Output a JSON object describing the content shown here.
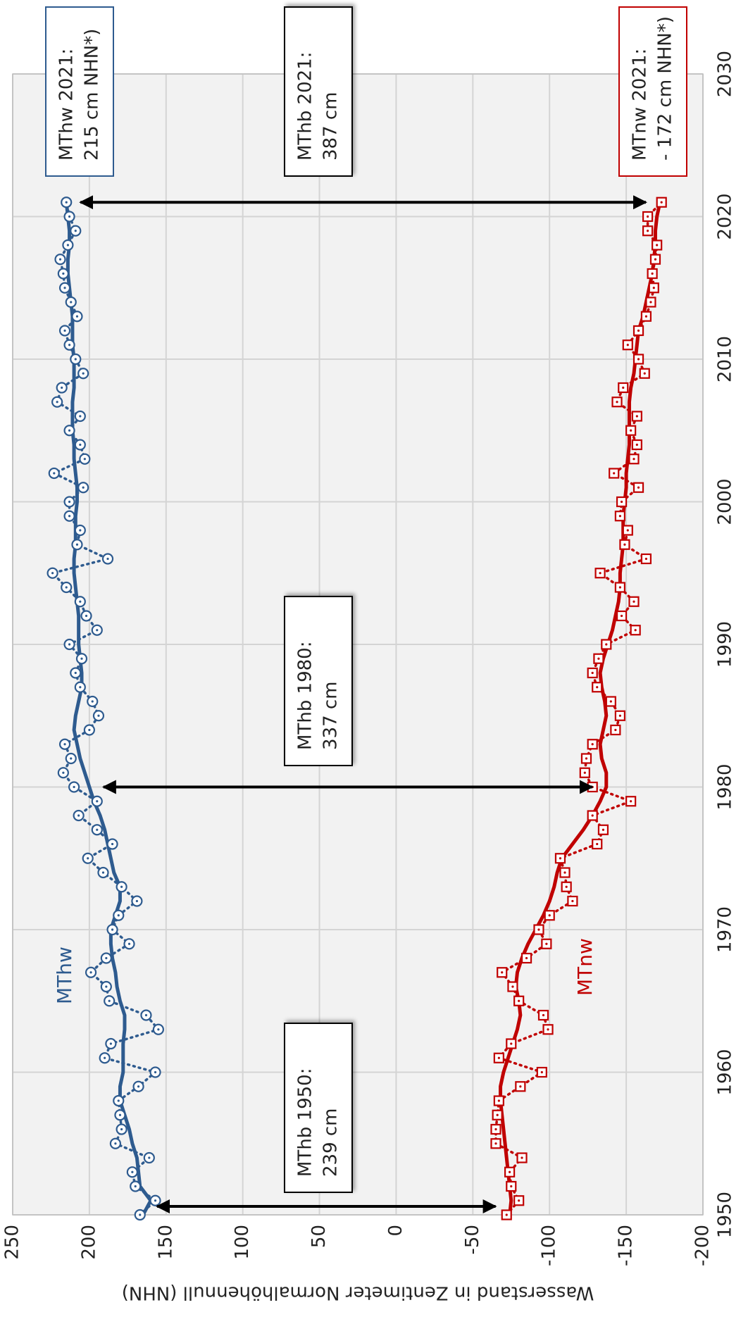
{
  "chart_data": {
    "type": "line",
    "y_axis_label": "Wasserstand in Zentimeter Normalhöhennull (NHN)",
    "x": [
      1950,
      1951,
      1952,
      1953,
      1954,
      1955,
      1956,
      1957,
      1958,
      1959,
      1960,
      1961,
      1962,
      1963,
      1964,
      1965,
      1966,
      1967,
      1968,
      1969,
      1970,
      1971,
      1972,
      1973,
      1974,
      1975,
      1976,
      1977,
      1978,
      1979,
      1980,
      1981,
      1982,
      1983,
      1984,
      1985,
      1986,
      1987,
      1988,
      1989,
      1990,
      1991,
      1992,
      1993,
      1994,
      1995,
      1996,
      1997,
      1998,
      1999,
      2000,
      2001,
      2002,
      2003,
      2004,
      2005,
      2006,
      2007,
      2008,
      2009,
      2010,
      2011,
      2012,
      2013,
      2014,
      2015,
      2016,
      2017,
      2018,
      2019,
      2020,
      2021
    ],
    "xlim": [
      1950,
      2030
    ],
    "xticks": [
      1950,
      1960,
      1970,
      1980,
      1990,
      2000,
      2010,
      2020,
      2030
    ],
    "ylim": [
      -200,
      250
    ],
    "yticks": [
      250,
      200,
      150,
      100,
      50,
      0,
      -50,
      -100,
      -150,
      -200
    ],
    "grid": true,
    "series": [
      {
        "name": "MThw",
        "color": "#2e5b8f",
        "marker": "circle",
        "values": [
          167,
          157,
          170,
          172,
          161,
          183,
          179,
          180,
          181,
          168,
          157,
          190,
          186,
          155,
          163,
          187,
          189,
          199,
          189,
          174,
          185,
          181,
          169,
          179,
          191,
          201,
          185,
          195,
          207,
          195,
          210,
          217,
          212,
          216,
          200,
          194,
          198,
          206,
          209,
          205,
          213,
          195,
          202,
          206,
          215,
          224,
          188,
          208,
          206,
          213,
          213,
          204,
          223,
          203,
          206,
          213,
          206,
          221,
          218,
          204,
          209,
          213,
          216,
          208,
          212,
          216,
          217,
          219,
          214,
          209,
          213,
          215
        ],
        "trend": [
          165,
          160,
          167,
          168,
          169,
          172,
          174,
          177,
          180,
          180,
          178,
          178,
          178,
          177,
          177,
          180,
          182,
          183,
          185,
          186,
          186,
          183,
          180,
          180,
          184,
          186,
          188,
          190,
          193,
          197,
          200,
          203,
          206,
          208,
          210,
          209,
          207,
          205,
          205,
          206,
          207,
          207,
          207,
          208,
          209,
          210,
          210,
          209,
          209,
          209,
          208,
          208,
          209,
          210,
          210,
          211,
          211,
          211,
          210,
          210,
          210,
          211,
          211,
          211,
          212,
          213,
          214,
          214,
          213,
          213,
          214,
          215
        ]
      },
      {
        "name": "MTnw",
        "color": "#c00000",
        "marker": "square",
        "values": [
          -72,
          -80,
          -75,
          -74,
          -82,
          -65,
          -65,
          -66,
          -67,
          -81,
          -95,
          -67,
          -75,
          -99,
          -96,
          -80,
          -76,
          -69,
          -85,
          -98,
          -93,
          -100,
          -115,
          -111,
          -110,
          -107,
          -131,
          -135,
          -128,
          -153,
          -128,
          -123,
          -124,
          -128,
          -143,
          -146,
          -140,
          -131,
          -128,
          -132,
          -137,
          -156,
          -147,
          -155,
          -146,
          -133,
          -163,
          -149,
          -151,
          -146,
          -147,
          -158,
          -142,
          -155,
          -157,
          -153,
          -157,
          -144,
          -148,
          -162,
          -158,
          -151,
          -158,
          -163,
          -166,
          -168,
          -167,
          -169,
          -170,
          -164,
          -164,
          -173
        ],
        "trend": [
          -74,
          -75,
          -74,
          -73,
          -72,
          -71,
          -70,
          -69,
          -68,
          -68,
          -70,
          -73,
          -76,
          -79,
          -81,
          -80,
          -78,
          -79,
          -82,
          -86,
          -91,
          -96,
          -100,
          -103,
          -105,
          -108,
          -115,
          -122,
          -128,
          -133,
          -137,
          -137,
          -134,
          -133,
          -135,
          -137,
          -136,
          -134,
          -133,
          -135,
          -138,
          -141,
          -143,
          -145,
          -146,
          -146,
          -147,
          -148,
          -148,
          -148,
          -149,
          -150,
          -150,
          -151,
          -152,
          -152,
          -152,
          -152,
          -153,
          -155,
          -156,
          -157,
          -158,
          -161,
          -163,
          -165,
          -167,
          -168,
          -169,
          -169,
          -170,
          -172
        ]
      }
    ],
    "annotations": [
      {
        "lines": [
          "MThb 1950:",
          "239 cm"
        ],
        "color": "#000000"
      },
      {
        "lines": [
          "MThb 1980:",
          "337 cm"
        ],
        "color": "#000000"
      },
      {
        "lines": [
          "MThb 2021:",
          "387 cm"
        ],
        "color": "#000000"
      },
      {
        "lines": [
          "MThw 2021:",
          "215 cm NHN*)"
        ],
        "color": "#2e5b8f"
      },
      {
        "lines": [
          "MTnw 2021:",
          "- 172 cm NHN*)"
        ],
        "color": "#c00000"
      }
    ]
  }
}
